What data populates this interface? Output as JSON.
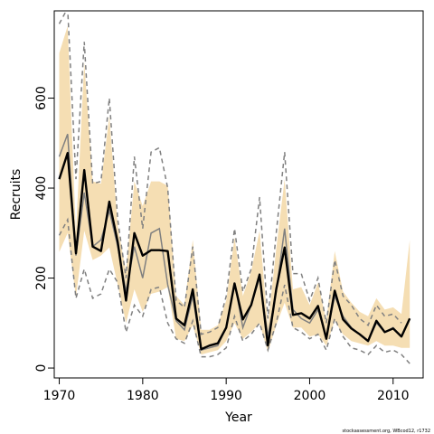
{
  "chart_data": {
    "type": "line",
    "xlabel": "Year",
    "ylabel": "Recruits",
    "xlim": [
      1969.4,
      2013.6
    ],
    "ylim": [
      -22,
      794
    ],
    "x_ticks": [
      1970,
      1980,
      1990,
      2000,
      2010
    ],
    "y_ticks": [
      0,
      200,
      400,
      600
    ],
    "x": [
      1970,
      1971,
      1972,
      1973,
      1974,
      1975,
      1976,
      1977,
      1978,
      1979,
      1980,
      1981,
      1982,
      1983,
      1984,
      1985,
      1986,
      1987,
      1988,
      1989,
      1990,
      1991,
      1992,
      1993,
      1994,
      1995,
      1996,
      1997,
      1998,
      1999,
      2000,
      2001,
      2002,
      2003,
      2004,
      2005,
      2006,
      2007,
      2008,
      2009,
      2010,
      2011,
      2012
    ],
    "series": [
      {
        "role": "shaded-interval",
        "color": "#f5deb3",
        "lower": [
          258,
          300,
          158,
          305,
          240,
          250,
          268,
          185,
          100,
          175,
          125,
          165,
          170,
          180,
          65,
          60,
          95,
          30,
          35,
          40,
          60,
          100,
          65,
          80,
          100,
          35,
          95,
          145,
          90,
          90,
          70,
          75,
          50,
          105,
          75,
          60,
          55,
          50,
          60,
          50,
          50,
          45,
          45
        ],
        "upper": [
          700,
          760,
          300,
          680,
          415,
          410,
          560,
          315,
          215,
          415,
          360,
          415,
          415,
          405,
          160,
          140,
          285,
          85,
          85,
          95,
          150,
          290,
          160,
          215,
          305,
          95,
          265,
          420,
          175,
          180,
          140,
          190,
          105,
          260,
          170,
          145,
          125,
          115,
          155,
          130,
          135,
          120,
          285
        ]
      },
      {
        "role": "median",
        "color": "#000000",
        "values": [
          420,
          478,
          255,
          440,
          270,
          260,
          370,
          280,
          150,
          300,
          250,
          262,
          262,
          260,
          110,
          95,
          175,
          42,
          50,
          55,
          90,
          188,
          108,
          140,
          208,
          50,
          175,
          268,
          118,
          122,
          110,
          138,
          65,
          172,
          108,
          88,
          75,
          60,
          105,
          80,
          88,
          70,
          110
        ]
      },
      {
        "role": "mpd-estimate",
        "color": "#808080",
        "values": [
          470,
          520,
          250,
          390,
          270,
          285,
          350,
          270,
          170,
          270,
          200,
          300,
          310,
          185,
          105,
          85,
          160,
          40,
          45,
          50,
          90,
          190,
          90,
          140,
          200,
          70,
          170,
          310,
          130,
          110,
          100,
          130,
          70,
          160,
          115,
          90,
          75,
          60,
          100,
          80,
          90,
          70,
          110
        ]
      },
      {
        "role": "mpd-interval-upper",
        "color": "#808080",
        "values": [
          765,
          800,
          420,
          725,
          410,
          415,
          600,
          330,
          200,
          470,
          310,
          480,
          490,
          400,
          150,
          135,
          270,
          75,
          80,
          90,
          160,
          310,
          170,
          220,
          380,
          110,
          300,
          480,
          210,
          210,
          150,
          200,
          100,
          240,
          160,
          140,
          110,
          95,
          140,
          115,
          120,
          100,
          null
        ]
      },
      {
        "role": "mpd-interval-lower",
        "color": "#808080",
        "values": [
          295,
          330,
          155,
          220,
          155,
          165,
          220,
          190,
          80,
          140,
          115,
          175,
          180,
          100,
          65,
          55,
          105,
          25,
          25,
          30,
          45,
          115,
          60,
          75,
          100,
          40,
          100,
          185,
          90,
          80,
          65,
          75,
          40,
          110,
          70,
          45,
          40,
          30,
          50,
          35,
          40,
          30,
          10
        ]
      }
    ],
    "credit": "stockassessment.org, WBcod12, r1732"
  }
}
